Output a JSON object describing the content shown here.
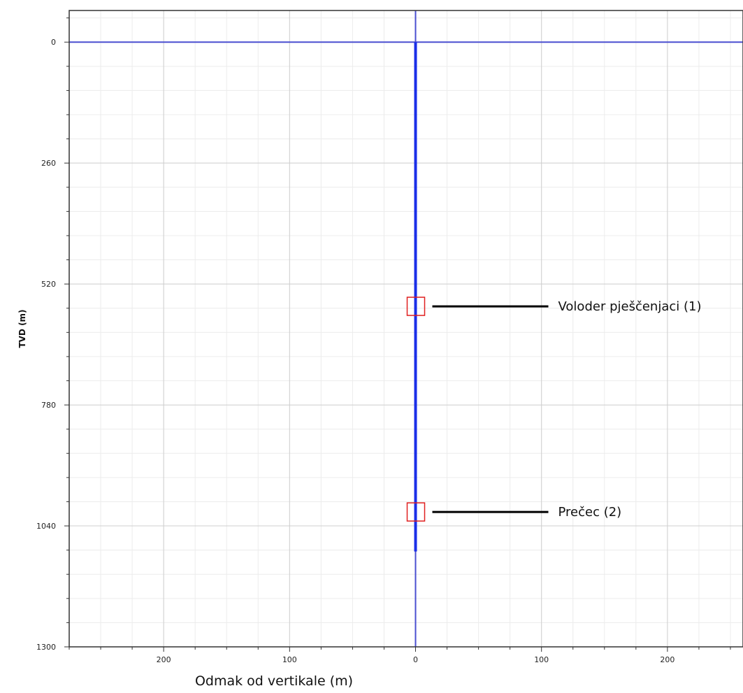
{
  "chart_data": {
    "type": "line",
    "xlabel": "Odmak od vertikale (m)",
    "ylabel": "TVD (m)",
    "xlim": [
      -275,
      260
    ],
    "ylim": [
      1300,
      -68
    ],
    "y_inverted": true,
    "x_ticks": [
      -200,
      -100,
      0,
      100,
      200
    ],
    "x_tick_labels": [
      "200",
      "100",
      "0",
      "100",
      "200"
    ],
    "y_ticks": [
      0,
      260,
      520,
      780,
      1040,
      1300
    ],
    "y_tick_labels": [
      "0",
      "260",
      "520",
      "780",
      "1040",
      "1300"
    ],
    "grid": true,
    "reference_lines": [
      {
        "orientation": "horizontal",
        "y": 0,
        "color": "#4a4fd0"
      },
      {
        "orientation": "vertical",
        "x": 0,
        "color": "#4a4fd0"
      }
    ],
    "series": [
      {
        "x": [
          0,
          0
        ],
        "y": [
          0,
          1095
        ],
        "color": "#1a2ee8"
      }
    ],
    "annotations": [
      {
        "label": "Voloder pješčenjaci (1)",
        "x": 0,
        "y": 568,
        "color": "#e02020",
        "line_color": "#000000"
      },
      {
        "label": "Prečec (2)",
        "x": 0,
        "y": 1010,
        "color": "#e02020",
        "line_color": "#000000"
      }
    ]
  }
}
